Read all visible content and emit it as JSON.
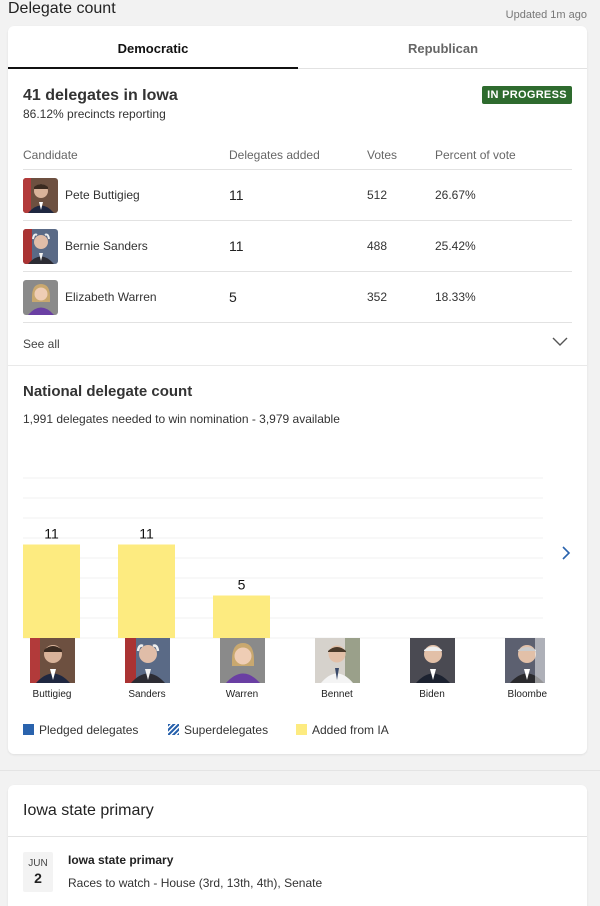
{
  "header": {
    "title": "Delegate count",
    "updated": "Updated 1m ago"
  },
  "tabs": [
    {
      "label": "Democratic",
      "active": true
    },
    {
      "label": "Republican",
      "active": false
    }
  ],
  "state": {
    "title": "41 delegates in Iowa",
    "precincts": "86.12% precincts reporting",
    "status": "IN PROGRESS",
    "status_color": "#2e6b2e"
  },
  "table": {
    "headers": [
      "Candidate",
      "Delegates added",
      "Votes",
      "Percent of vote"
    ],
    "rows": [
      {
        "name": "Pete Buttigieg",
        "delegates": "11",
        "votes": "512",
        "percent": "26.67%"
      },
      {
        "name": "Bernie Sanders",
        "delegates": "11",
        "votes": "488",
        "percent": "25.42%"
      },
      {
        "name": "Elizabeth Warren",
        "delegates": "5",
        "votes": "352",
        "percent": "18.33%"
      }
    ],
    "see_all": "See all"
  },
  "national": {
    "title": "National delegate count",
    "subtitle": "1,991 delegates needed to win nomination - 3,979 available"
  },
  "chart_data": {
    "type": "bar",
    "categories": [
      "Buttigieg",
      "Sanders",
      "Warren",
      "Bennet",
      "Biden",
      "Bloomberg"
    ],
    "category_labels": [
      "Buttigieg",
      "Sanders",
      "Warren",
      "Bennet",
      "Biden",
      "Bloombe"
    ],
    "series": [
      {
        "name": "Added from IA",
        "values": [
          11,
          11,
          5,
          0,
          0,
          0
        ],
        "color": "#fdeb80"
      }
    ],
    "data_labels": [
      "11",
      "11",
      "5",
      "",
      "",
      ""
    ],
    "ylim": [
      0,
      20
    ],
    "grid": true,
    "legend": "bottom"
  },
  "legend": [
    {
      "label": "Pledged delegates",
      "color": "#2a63ad",
      "pattern": "solid"
    },
    {
      "label": "Superdelegates",
      "color": "#2a63ad",
      "pattern": "striped"
    },
    {
      "label": "Added from IA",
      "color": "#fdeb80",
      "pattern": "solid"
    }
  ],
  "primary": {
    "title": "Iowa state primary",
    "event": {
      "month": "JUN",
      "day": "2",
      "title": "Iowa state primary",
      "subtitle": "Races to watch - House (3rd, 13th, 4th), Senate"
    }
  }
}
